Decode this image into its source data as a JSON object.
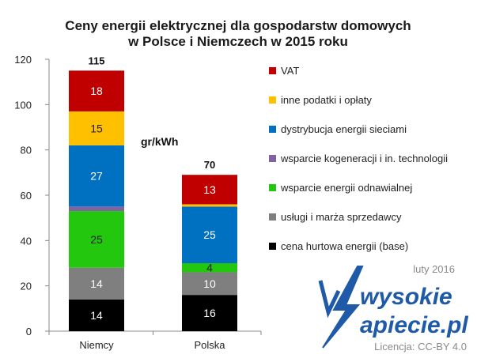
{
  "chart_data": {
    "type": "bar",
    "stacked": true,
    "title_lines": [
      "Ceny energii elektrycznej dla gospodarstw domowych",
      "w Polsce i Niemczech w 2015 roku"
    ],
    "unit_label": "gr/kWh",
    "categories": [
      "Niemcy",
      "Polska"
    ],
    "totals": [
      115,
      70
    ],
    "ylim": [
      0,
      120
    ],
    "yticks": [
      0,
      20,
      40,
      60,
      80,
      100,
      120
    ],
    "grid": false,
    "legend_position": "right",
    "series": [
      {
        "name": "cena hurtowa energii (base)",
        "color": "#000000",
        "values": [
          14,
          16
        ],
        "labels": [
          "14",
          "16"
        ]
      },
      {
        "name": "usługi i marża sprzedawcy",
        "color": "#7f7f7f",
        "values": [
          14,
          10
        ],
        "labels": [
          "14",
          "10"
        ]
      },
      {
        "name": "wsparcie energii odnawialnej",
        "color": "#22c70e",
        "values": [
          25,
          4
        ],
        "labels": [
          "25",
          "4"
        ]
      },
      {
        "name": "wsparcie kogeneracji i in. technologii",
        "color": "#8064a2",
        "values": [
          2,
          0
        ],
        "labels": [
          "",
          ""
        ]
      },
      {
        "name": "dystrybucja energii sieciami",
        "color": "#0070c0",
        "values": [
          27,
          25
        ],
        "labels": [
          "27",
          "25"
        ]
      },
      {
        "name": "inne podatki i opłaty",
        "color": "#ffc000",
        "values": [
          15,
          1
        ],
        "labels": [
          "15",
          ""
        ]
      },
      {
        "name": "VAT",
        "color": "#c00000",
        "values": [
          18,
          13
        ],
        "labels": [
          "18",
          "13"
        ]
      }
    ]
  },
  "annotations": {
    "date": "luty 2016",
    "license": "Licencja: CC-BY 4.0",
    "logo_line1": "wysokie",
    "logo_line2": "apiecie.pl"
  }
}
